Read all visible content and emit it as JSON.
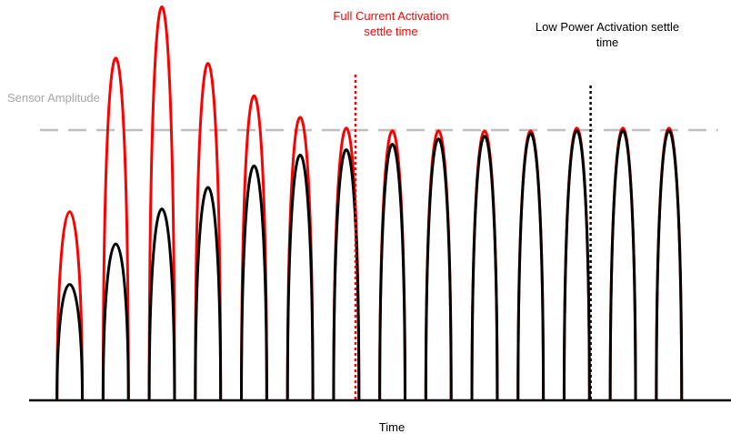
{
  "chart_data": {
    "type": "line",
    "title": "",
    "xlabel": "Time",
    "ylabel": "",
    "grid": false,
    "legend": "none",
    "xlim": [
      0,
      17
    ],
    "ylim": [
      0,
      1.45
    ],
    "reference_line": {
      "label": "Sensor Amplitude",
      "value": 1.0,
      "color": "#bfbfbf"
    },
    "markers": [
      {
        "label_lines": [
          "Full Current Activation",
          "settle time"
        ],
        "x": 8.5,
        "color": "#ff0000"
      },
      {
        "label_lines": [
          "Low Power Activation settle",
          "time"
        ],
        "x": 13.6,
        "color": "#000000"
      }
    ],
    "pulse_width": 0.55,
    "series": [
      {
        "color": "#ff0000",
        "pulses": [
          {
            "x": 2.3,
            "peak": 0.7
          },
          {
            "x": 3.3,
            "peak": 1.27
          },
          {
            "x": 4.3,
            "peak": 1.46
          },
          {
            "x": 5.3,
            "peak": 1.25
          },
          {
            "x": 6.3,
            "peak": 1.13
          },
          {
            "x": 7.3,
            "peak": 1.05
          },
          {
            "x": 8.3,
            "peak": 1.01
          },
          {
            "x": 9.3,
            "peak": 1.0
          },
          {
            "x": 10.3,
            "peak": 1.0
          },
          {
            "x": 11.3,
            "peak": 1.0
          },
          {
            "x": 12.3,
            "peak": 1.0
          },
          {
            "x": 13.3,
            "peak": 1.01
          },
          {
            "x": 14.3,
            "peak": 1.01
          },
          {
            "x": 15.3,
            "peak": 1.01
          }
        ]
      },
      {
        "color": "#000000",
        "pulses": [
          {
            "x": 2.3,
            "peak": 0.43
          },
          {
            "x": 3.3,
            "peak": 0.58
          },
          {
            "x": 4.3,
            "peak": 0.71
          },
          {
            "x": 5.3,
            "peak": 0.79
          },
          {
            "x": 6.3,
            "peak": 0.87
          },
          {
            "x": 7.3,
            "peak": 0.91
          },
          {
            "x": 8.3,
            "peak": 0.93
          },
          {
            "x": 9.3,
            "peak": 0.95
          },
          {
            "x": 10.3,
            "peak": 0.97
          },
          {
            "x": 11.3,
            "peak": 0.98
          },
          {
            "x": 12.3,
            "peak": 0.99
          },
          {
            "x": 13.3,
            "peak": 1.0
          },
          {
            "x": 14.3,
            "peak": 1.0
          },
          {
            "x": 15.3,
            "peak": 1.0
          }
        ]
      }
    ]
  }
}
